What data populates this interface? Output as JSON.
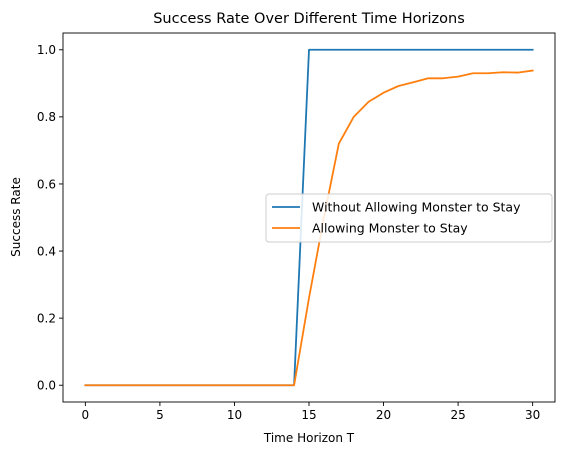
{
  "chart_data": {
    "type": "line",
    "title": "Success Rate Over Different Time Horizons",
    "xlabel": "Time Horizon T",
    "ylabel": "Success Rate",
    "xlim": [
      -1.5,
      31.5
    ],
    "ylim": [
      -0.05,
      1.05
    ],
    "x_ticks": [
      0,
      5,
      10,
      15,
      20,
      25,
      30
    ],
    "x_tick_labels": [
      "0",
      "5",
      "10",
      "15",
      "20",
      "25",
      "30"
    ],
    "y_ticks": [
      0.0,
      0.2,
      0.4,
      0.6,
      0.8,
      1.0
    ],
    "y_tick_labels": [
      "0.0",
      "0.2",
      "0.4",
      "0.6",
      "0.8",
      "1.0"
    ],
    "grid": false,
    "legend_position": "center-right",
    "series": [
      {
        "name": "Without Allowing Monster to Stay",
        "color": "#1f77b4",
        "x": [
          0,
          1,
          2,
          3,
          4,
          5,
          6,
          7,
          8,
          9,
          10,
          11,
          12,
          13,
          14,
          15,
          16,
          17,
          18,
          19,
          20,
          21,
          22,
          23,
          24,
          25,
          26,
          27,
          28,
          29,
          30
        ],
        "y": [
          0,
          0,
          0,
          0,
          0,
          0,
          0,
          0,
          0,
          0,
          0,
          0,
          0,
          0,
          0,
          1.0,
          1.0,
          1.0,
          1.0,
          1.0,
          1.0,
          1.0,
          1.0,
          1.0,
          1.0,
          1.0,
          1.0,
          1.0,
          1.0,
          1.0,
          1.0
        ]
      },
      {
        "name": "Allowing Monster to Stay",
        "color": "#ff7f0e",
        "x": [
          0,
          1,
          2,
          3,
          4,
          5,
          6,
          7,
          8,
          9,
          10,
          11,
          12,
          13,
          14,
          15,
          16,
          17,
          18,
          19,
          20,
          21,
          22,
          23,
          24,
          25,
          26,
          27,
          28,
          29,
          30
        ],
        "y": [
          0,
          0,
          0,
          0,
          0,
          0,
          0,
          0,
          0,
          0,
          0,
          0,
          0,
          0,
          0,
          0.26,
          0.5,
          0.72,
          0.8,
          0.845,
          0.872,
          0.892,
          0.903,
          0.915,
          0.915,
          0.92,
          0.93,
          0.93,
          0.933,
          0.932,
          0.938
        ]
      }
    ]
  }
}
